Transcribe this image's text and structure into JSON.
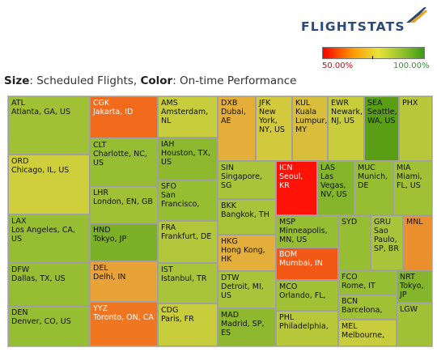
{
  "logo": {
    "text": "FLIGHTSTATS"
  },
  "legend": {
    "min_label": "50.00%",
    "max_label": "100.00%"
  },
  "subtitle": {
    "size_key": "Size",
    "size_value": "Scheduled Flights",
    "color_key": "Color",
    "color_value": "On-time Performance"
  },
  "colors": {
    "low": "#ff0000",
    "mid": "#e6e33a",
    "high": "#3a9a16"
  },
  "chart_data": {
    "type": "heatmap",
    "subtype": "treemap",
    "size_measure": "Scheduled Flights",
    "color_measure": "On-time Performance",
    "color_range": [
      50,
      100
    ],
    "items": [
      {
        "code": "ATL",
        "name": "Atlanta, GA, US",
        "ontime": 85
      },
      {
        "code": "ORD",
        "name": "Chicago, IL, US",
        "ontime": 79
      },
      {
        "code": "LAX",
        "name": "Los Angeles, CA, US",
        "ontime": 86
      },
      {
        "code": "DFW",
        "name": "Dallas, TX, US",
        "ontime": 86
      },
      {
        "code": "DEN",
        "name": "Denver, CO, US",
        "ontime": 86
      },
      {
        "code": "CGK",
        "name": "Jakarta, ID",
        "ontime": 62
      },
      {
        "code": "CLT",
        "name": "Charlotte, NC, US",
        "ontime": 86
      },
      {
        "code": "LHR",
        "name": "London, EN, GB",
        "ontime": 85
      },
      {
        "code": "HND",
        "name": "Tokyo, JP",
        "ontime": 89
      },
      {
        "code": "DEL",
        "name": "Delhi, IN",
        "ontime": 71
      },
      {
        "code": "YYZ",
        "name": "Toronto, ON, CA",
        "ontime": 64
      },
      {
        "code": "AMS",
        "name": "Amsterdam, NL",
        "ontime": 80
      },
      {
        "code": "IAH",
        "name": "Houston, TX, US",
        "ontime": 87
      },
      {
        "code": "SFO",
        "name": "San Francisco,",
        "ontime": 86
      },
      {
        "code": "FRA",
        "name": "Frankfurt, DE",
        "ontime": 83
      },
      {
        "code": "IST",
        "name": "Istanbul, TR",
        "ontime": 84
      },
      {
        "code": "CDG",
        "name": "Paris, FR",
        "ontime": 80
      },
      {
        "code": "DXB",
        "name": "Dubai, AE",
        "ontime": 73
      },
      {
        "code": "JFK",
        "name": "New York, NY, US",
        "ontime": 78
      },
      {
        "code": "KUL",
        "name": "Kuala Lumpur, MY",
        "ontime": 76
      },
      {
        "code": "EWR",
        "name": "Newark, NJ, US",
        "ontime": 80
      },
      {
        "code": "SEA",
        "name": "Seattle, WA, US",
        "ontime": 93
      },
      {
        "code": "PHX",
        "name": "",
        "ontime": 82
      },
      {
        "code": "SIN",
        "name": "Singapore, SG",
        "ontime": 84
      },
      {
        "code": "BKK",
        "name": "Bangkok, TH",
        "ontime": 84
      },
      {
        "code": "HKG",
        "name": "Hong Kong, HK",
        "ontime": 73
      },
      {
        "code": "DTW",
        "name": "Detroit, MI, US",
        "ontime": 84
      },
      {
        "code": "MAD",
        "name": "Madrid, SP, ES",
        "ontime": 87
      },
      {
        "code": "ICN",
        "name": "Seoul, KR",
        "ontime": 52
      },
      {
        "code": "LAS",
        "name": "Las Vegas, NV, US",
        "ontime": 88
      },
      {
        "code": "MUC",
        "name": "Munich, DE",
        "ontime": 86
      },
      {
        "code": "MIA",
        "name": "Miami, FL, US",
        "ontime": 85
      },
      {
        "code": "MSP",
        "name": "Minneapolis, MN, US",
        "ontime": 86
      },
      {
        "code": "BOM",
        "name": "Mumbai, IN",
        "ontime": 60
      },
      {
        "code": "MCO",
        "name": "Orlando, FL,",
        "ontime": 85
      },
      {
        "code": "PHL",
        "name": "Philadelphia,",
        "ontime": 82
      },
      {
        "code": "SYD",
        "name": "",
        "ontime": 86
      },
      {
        "code": "GRU",
        "name": "Sao Paulo, SP, BR",
        "ontime": 84
      },
      {
        "code": "MNL",
        "name": "",
        "ontime": 68
      },
      {
        "code": "FCO",
        "name": "Rome, IT",
        "ontime": 86
      },
      {
        "code": "NRT",
        "name": "Tokyo, JP",
        "ontime": 88
      },
      {
        "code": "BCN",
        "name": "Barcelona,",
        "ontime": 85
      },
      {
        "code": "MEL",
        "name": "Melbourne,",
        "ontime": 80
      },
      {
        "code": "LGW",
        "name": "",
        "ontime": 85
      }
    ]
  }
}
